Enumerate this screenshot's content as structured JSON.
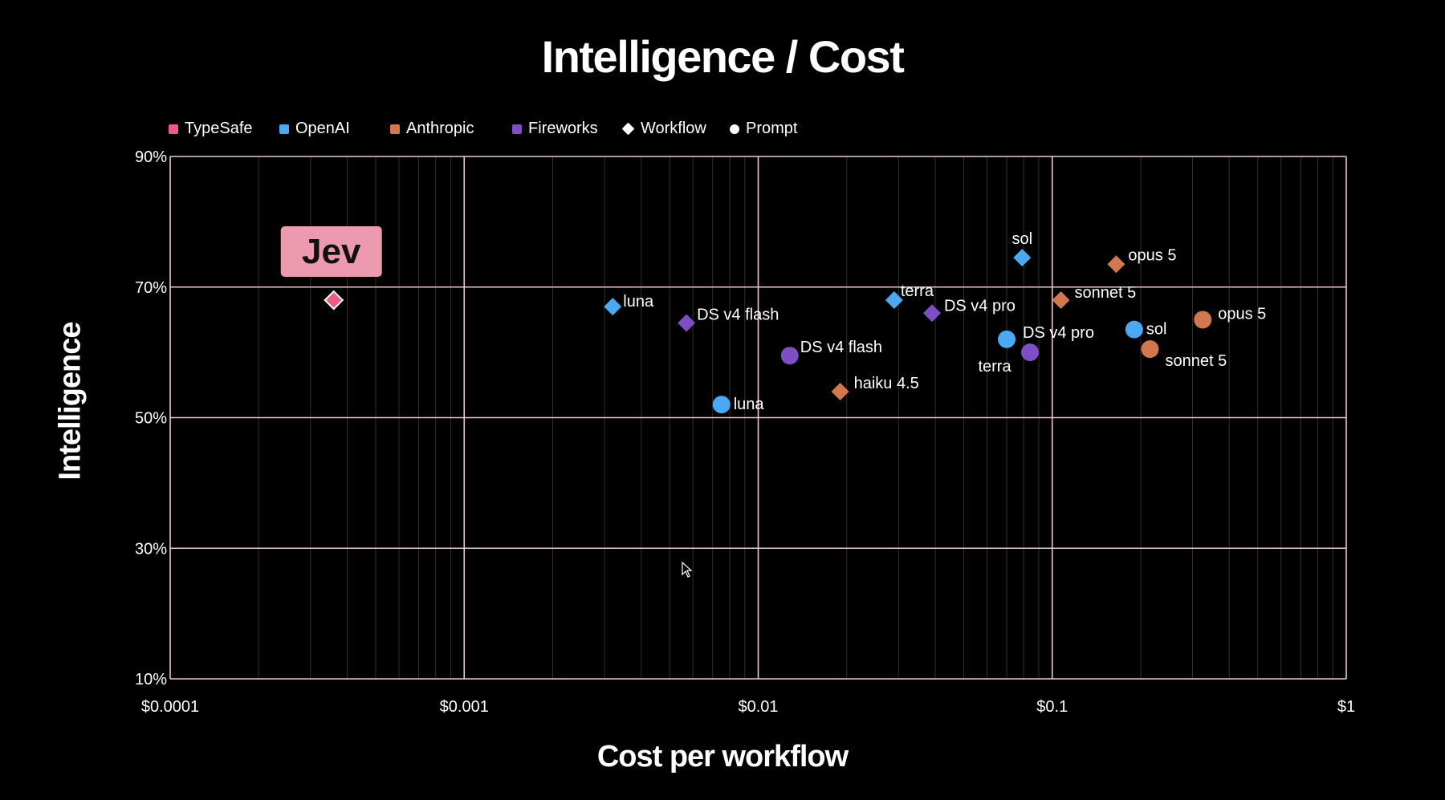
{
  "chart_data": {
    "type": "scatter",
    "title": "Intelligence / Cost",
    "xlabel": "Cost per workflow",
    "ylabel": "Intelligence",
    "x_scale": "log",
    "xlim": [
      0.0001,
      1
    ],
    "ylim": [
      10,
      90
    ],
    "x_ticks": [
      "$0.0001",
      "$0.001",
      "$0.01",
      "$0.1",
      "$1"
    ],
    "y_ticks": [
      "10%",
      "30%",
      "50%",
      "70%",
      "90%"
    ],
    "grid": true,
    "legend": [
      {
        "label": "TypeSafe",
        "kind": "color",
        "color": "#ee5c84"
      },
      {
        "label": "OpenAI",
        "kind": "color",
        "color": "#4aa9f2"
      },
      {
        "label": "Anthropic",
        "kind": "color",
        "color": "#d2784f"
      },
      {
        "label": "Fireworks",
        "kind": "color",
        "color": "#7f4ec4"
      },
      {
        "label": "Workflow",
        "kind": "diamond"
      },
      {
        "label": "Prompt",
        "kind": "circle"
      }
    ],
    "points": [
      {
        "label": "",
        "x": 0.00036,
        "y": 68,
        "group": "TypeSafe",
        "shape": "diamond"
      },
      {
        "label": "luna",
        "x": 0.0032,
        "y": 67,
        "group": "OpenAI",
        "shape": "diamond"
      },
      {
        "label": "DS v4 flash",
        "x": 0.0057,
        "y": 64.5,
        "group": "Fireworks",
        "shape": "diamond"
      },
      {
        "label": "luna",
        "x": 0.0075,
        "y": 52,
        "group": "OpenAI",
        "shape": "circle"
      },
      {
        "label": "DS v4 flash",
        "x": 0.0128,
        "y": 59.5,
        "group": "Fireworks",
        "shape": "circle"
      },
      {
        "label": "haiku 4.5",
        "x": 0.019,
        "y": 54,
        "group": "Anthropic",
        "shape": "diamond"
      },
      {
        "label": "terra",
        "x": 0.029,
        "y": 68,
        "group": "OpenAI",
        "shape": "diamond"
      },
      {
        "label": "DS v4 pro",
        "x": 0.039,
        "y": 66,
        "group": "Fireworks",
        "shape": "diamond"
      },
      {
        "label": "sol",
        "x": 0.079,
        "y": 74.5,
        "group": "OpenAI",
        "shape": "diamond"
      },
      {
        "label": "terra",
        "x": 0.07,
        "y": 62,
        "group": "OpenAI",
        "shape": "circle"
      },
      {
        "label": "DS v4 pro",
        "x": 0.084,
        "y": 60,
        "group": "Fireworks",
        "shape": "circle"
      },
      {
        "label": "sonnet 5",
        "x": 0.107,
        "y": 68,
        "group": "Anthropic",
        "shape": "diamond"
      },
      {
        "label": "opus 5",
        "x": 0.165,
        "y": 73.5,
        "group": "Anthropic",
        "shape": "diamond"
      },
      {
        "label": "sol",
        "x": 0.19,
        "y": 63.5,
        "group": "OpenAI",
        "shape": "circle"
      },
      {
        "label": "sonnet 5",
        "x": 0.215,
        "y": 60.5,
        "group": "Anthropic",
        "shape": "circle"
      },
      {
        "label": "opus 5",
        "x": 0.325,
        "y": 65,
        "group": "Anthropic",
        "shape": "circle"
      }
    ],
    "annotation": {
      "text": "Jev",
      "color": "#ed9ab0"
    }
  }
}
